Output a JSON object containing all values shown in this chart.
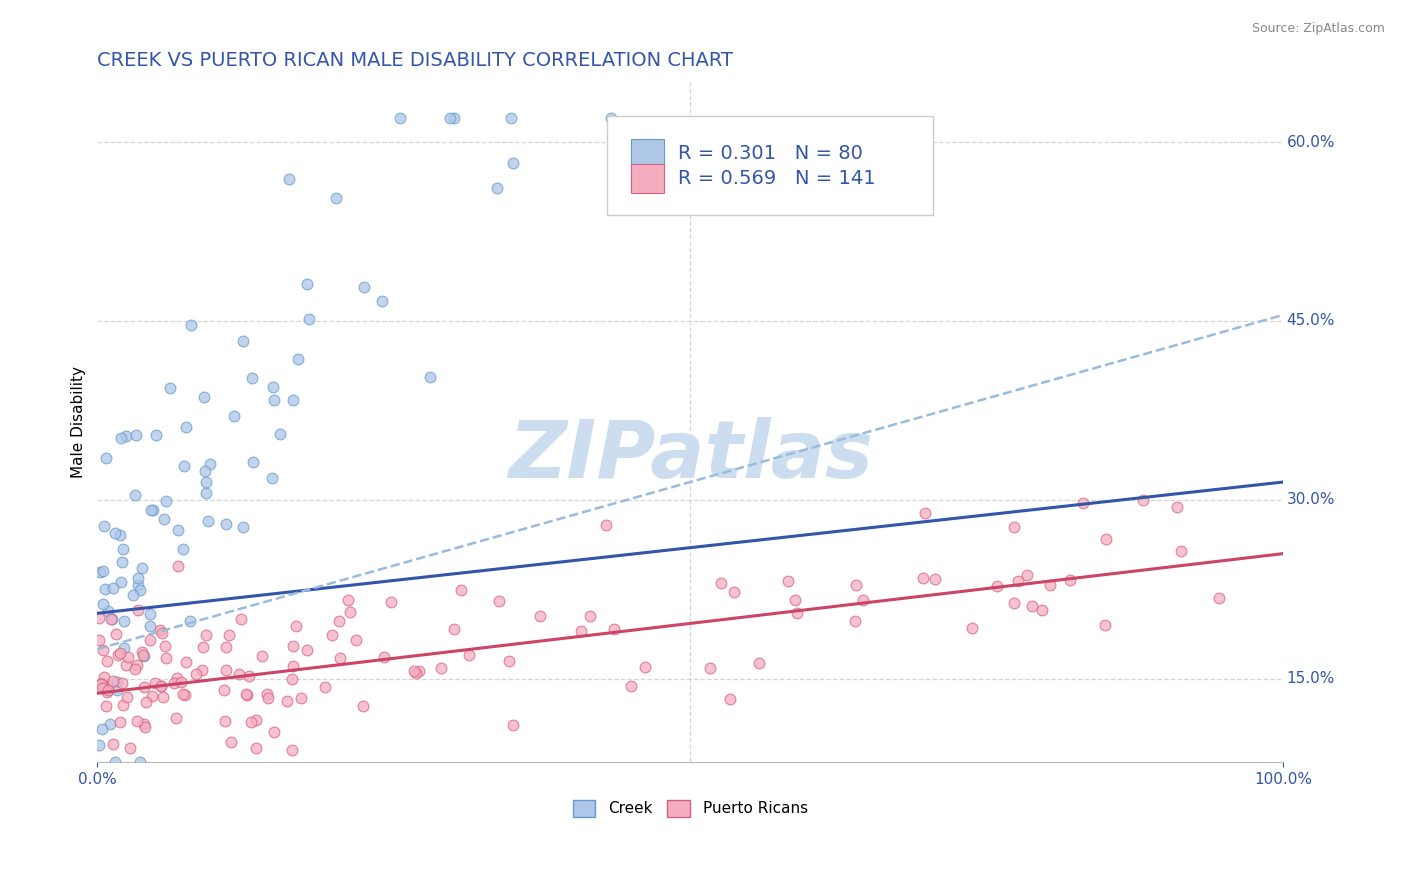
{
  "title": "CREEK VS PUERTO RICAN MALE DISABILITY CORRELATION CHART",
  "source_text": "Source: ZipAtlas.com",
  "ylabel": "Male Disability",
  "xlim": [
    0.0,
    1.0
  ],
  "ylim": [
    0.08,
    0.65
  ],
  "yticks": [
    0.15,
    0.3,
    0.45,
    0.6
  ],
  "ytick_labels": [
    "15.0%",
    "30.0%",
    "45.0%",
    "60.0%"
  ],
  "xtick_labels": [
    "0.0%",
    "100.0%"
  ],
  "xticks": [
    0.0,
    1.0
  ],
  "creek_color": "#aec6e8",
  "creek_edge_color": "#6699cc",
  "pr_color": "#f4aec0",
  "pr_edge_color": "#d96080",
  "creek_R": 0.301,
  "creek_N": 80,
  "pr_R": 0.569,
  "pr_N": 141,
  "trend_creek_color": "#3355aa",
  "trend_pr_color": "#cc4466",
  "trend_dashed_color": "#99bbdd",
  "background_color": "#ffffff",
  "grid_color": "#cccccc",
  "title_color": "#3355aa",
  "tick_color": "#3355aa",
  "watermark_color": "#ccddf0",
  "creek_line_start_y": 0.205,
  "creek_line_end_y": 0.315,
  "pr_line_start_y": 0.138,
  "pr_line_end_y": 0.255,
  "dashed_line_start_y": 0.175,
  "dashed_line_end_y": 0.455,
  "title_fontsize": 14,
  "axis_label_fontsize": 11,
  "tick_fontsize": 11,
  "legend_fontsize": 14,
  "marker_size": 60
}
